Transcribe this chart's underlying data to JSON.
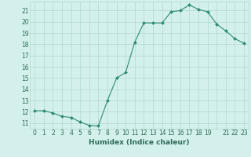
{
  "xlabel": "Humidex (Indice chaleur)",
  "ylabel": "",
  "x_values": [
    0,
    1,
    2,
    3,
    4,
    5,
    6,
    7,
    8,
    9,
    10,
    11,
    12,
    13,
    14,
    15,
    16,
    17,
    18,
    19,
    20,
    21,
    22,
    23
  ],
  "y_values": [
    12.1,
    12.1,
    11.9,
    11.6,
    11.5,
    11.1,
    10.8,
    10.75,
    13.0,
    15.0,
    15.5,
    18.2,
    19.9,
    19.9,
    19.9,
    20.9,
    21.0,
    21.5,
    21.1,
    20.9,
    19.8,
    19.2,
    18.5,
    18.1
  ],
  "line_color": "#2e8b72",
  "marker_color": "#2e8b72",
  "bg_color": "#d4f0ec",
  "grid_color": "#b0d8d0",
  "tick_color": "#2e6b5a",
  "ylim": [
    10.5,
    21.8
  ],
  "xlim": [
    -0.5,
    23.5
  ],
  "yticks": [
    11,
    12,
    13,
    14,
    15,
    16,
    17,
    18,
    19,
    20,
    21
  ],
  "xtick_labels": [
    "0",
    "1",
    "2",
    "3",
    "4",
    "5",
    "6",
    "7",
    "8",
    "9",
    "10",
    "11",
    "12",
    "13",
    "14",
    "15",
    "16",
    "17",
    "18",
    "19",
    "",
    "21",
    "22",
    "23"
  ],
  "xlabel_fontsize": 6.5,
  "tick_fontsize": 5.5
}
